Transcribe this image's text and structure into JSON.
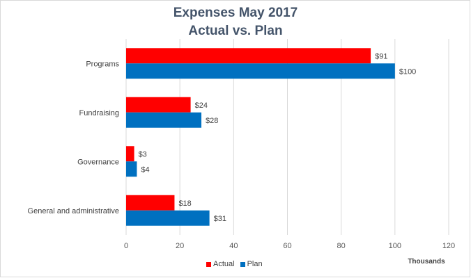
{
  "chart_data": {
    "type": "bar",
    "orientation": "horizontal",
    "title": "Expenses May 2017",
    "subtitle": "Actual vs. Plan",
    "categories": [
      "Programs",
      "Fundraising",
      "Governance",
      "General and administrative"
    ],
    "series": [
      {
        "name": "Actual",
        "color": "#ff0000",
        "values": [
          91,
          24,
          3,
          18
        ],
        "labels": [
          "$91",
          "$24",
          "$3",
          "$18"
        ]
      },
      {
        "name": "Plan",
        "color": "#0070c0",
        "values": [
          100,
          28,
          4,
          31
        ],
        "labels": [
          "$100",
          "$28",
          "$4",
          "$31"
        ]
      }
    ],
    "xlim": [
      0,
      120
    ],
    "xticks": [
      "0",
      "20",
      "40",
      "60",
      "80",
      "100",
      "120"
    ],
    "xunit_label": "Thousands",
    "grid": true,
    "legend_position": "bottom"
  }
}
